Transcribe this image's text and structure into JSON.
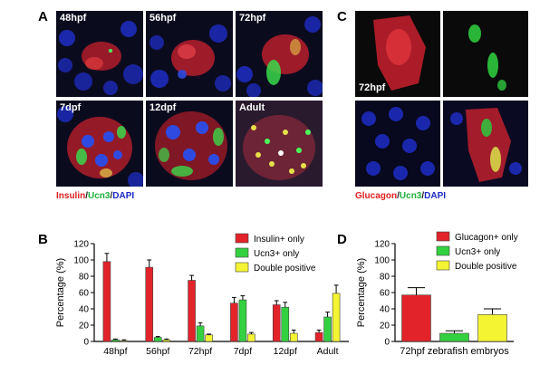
{
  "panels": {
    "a": {
      "letter": "A",
      "images": [
        {
          "label": "48hpf"
        },
        {
          "label": "56hpf"
        },
        {
          "label": "72hpf"
        },
        {
          "label": "7dpf"
        },
        {
          "label": "12dpf"
        },
        {
          "label": "Adult"
        }
      ],
      "caption": {
        "part1": "Insulin",
        "sep1": "/",
        "part2": "Ucn3",
        "sep2": "/",
        "part3": "DAPI"
      }
    },
    "c": {
      "letter": "C",
      "image_label": "72hpf",
      "caption": {
        "part1": "Glucagon",
        "sep1": "/",
        "part2": "Ucn3",
        "sep2": "/",
        "part3": "DAPI"
      }
    },
    "b": {
      "letter": "B"
    },
    "d": {
      "letter": "D"
    }
  },
  "colors": {
    "red_bar": "#e2232a",
    "green_bar": "#33d13f",
    "yellow_bar": "#f4f432",
    "insulin_red": "#e0201e",
    "ucn3_green": "#1fb23a",
    "dapi_blue": "#1c28c8"
  },
  "chart_data": [
    {
      "panel": "B",
      "type": "bar",
      "ylabel": "Percentage (%)",
      "xlabel": "",
      "ylim": [
        0,
        120
      ],
      "yticks": [
        "0",
        "20",
        "40",
        "60",
        "80",
        "100",
        "120"
      ],
      "categories": [
        "48hpf",
        "56hpf",
        "72hpf",
        "7dpf",
        "12dpf",
        "Adult"
      ],
      "legend_position": "top-right",
      "series": [
        {
          "name": "Insulin+ only",
          "color": "#e2232a",
          "values": [
            98,
            91,
            75,
            47,
            45,
            11
          ],
          "errors": [
            10,
            9,
            6,
            7,
            5,
            3
          ]
        },
        {
          "name": "Ucn3+ only",
          "color": "#33d13f",
          "values": [
            2,
            5,
            19,
            51,
            42,
            30
          ],
          "errors": [
            1,
            1,
            4,
            5,
            6,
            6
          ]
        },
        {
          "name": "Double positive",
          "color": "#f4f432",
          "values": [
            1,
            2,
            8,
            9,
            10,
            59
          ],
          "errors": [
            1,
            1,
            1,
            2,
            4,
            10
          ]
        }
      ]
    },
    {
      "panel": "D",
      "type": "bar",
      "ylabel": "Percentage (%)",
      "xlabel": "72hpf zebrafish embryos",
      "ylim": [
        0,
        120
      ],
      "yticks": [
        "0",
        "20",
        "40",
        "60",
        "80",
        "100",
        "120"
      ],
      "categories": [
        ""
      ],
      "legend_position": "top-right",
      "series": [
        {
          "name": "Glucagon+ only",
          "color": "#e2232a",
          "values": [
            57
          ],
          "errors": [
            9
          ]
        },
        {
          "name": "Ucn3+ only",
          "color": "#33d13f",
          "values": [
            10
          ],
          "errors": [
            3
          ]
        },
        {
          "name": "Double positive",
          "color": "#f4f432",
          "values": [
            33
          ],
          "errors": [
            7
          ]
        }
      ]
    }
  ]
}
